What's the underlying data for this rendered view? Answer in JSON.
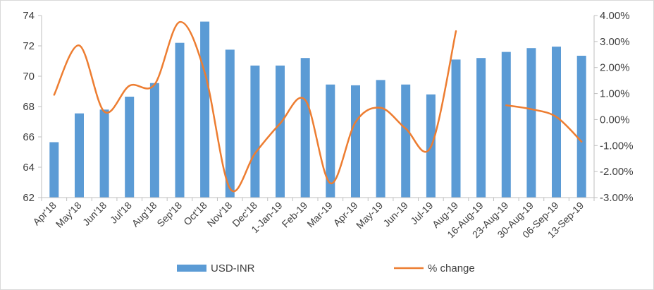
{
  "chart_data": {
    "type": "bar+line",
    "title": "",
    "categories": [
      "Apr'18",
      "May'18",
      "Jun'18",
      "Jul'18",
      "Aug'18",
      "Sep'18",
      "Oct'18",
      "Nov'18",
      "Dec'18",
      "1-Jan-19",
      "Feb-19",
      "Mar-19",
      "Apr-19",
      "May-19",
      "Jun-19",
      "Jul-19",
      "Aug-19",
      "16-Aug-19",
      "23-Aug-19",
      "30-Aug-19",
      "06-Sep-19",
      "13-Sep-19"
    ],
    "series": [
      {
        "name": "USD-INR",
        "type": "bar",
        "axis": "left",
        "color": "#5b9bd5",
        "values": [
          65.65,
          67.55,
          67.8,
          68.65,
          69.55,
          72.2,
          73.6,
          71.75,
          70.7,
          70.7,
          71.2,
          69.45,
          69.4,
          69.75,
          69.45,
          68.8,
          71.1,
          71.2,
          71.6,
          71.85,
          71.95,
          71.35
        ]
      },
      {
        "name": "% change",
        "type": "line",
        "axis": "right",
        "color": "#ed7d31",
        "values": [
          0.95,
          2.85,
          0.3,
          1.3,
          1.35,
          3.75,
          1.8,
          -2.65,
          -1.3,
          -0.15,
          0.75,
          -2.45,
          -0.1,
          0.45,
          -0.35,
          -1.05,
          3.4,
          null,
          0.55,
          0.4,
          0.1,
          -0.85
        ]
      }
    ],
    "y_left": {
      "ylim": [
        62,
        74
      ],
      "ticks": [
        "62",
        "64",
        "66",
        "68",
        "70",
        "72",
        "74"
      ]
    },
    "y_right": {
      "ylim": [
        -3,
        4
      ],
      "ticks": [
        "-3.00%",
        "-2.00%",
        "-1.00%",
        "0.00%",
        "1.00%",
        "2.00%",
        "3.00%",
        "4.00%"
      ]
    },
    "grid": false,
    "legend": "bottom"
  }
}
